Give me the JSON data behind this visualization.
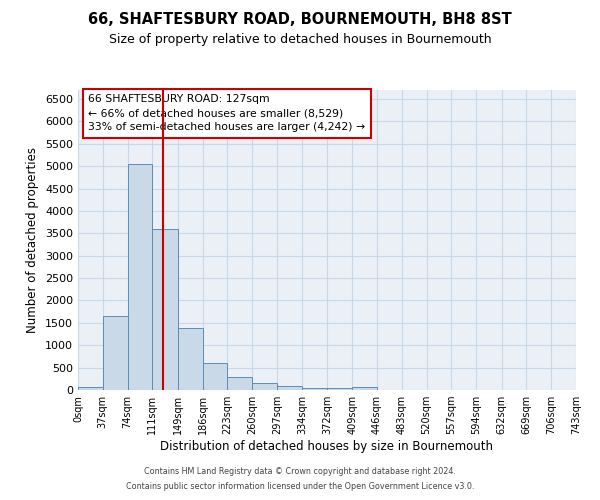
{
  "title": "66, SHAFTESBURY ROAD, BOURNEMOUTH, BH8 8ST",
  "subtitle": "Size of property relative to detached houses in Bournemouth",
  "xlabel": "Distribution of detached houses by size in Bournemouth",
  "ylabel": "Number of detached properties",
  "bar_color": "#c9d9e8",
  "bar_edge_color": "#5b8db8",
  "grid_color": "#c8d8e8",
  "background_color": "#eaf0f6",
  "vline_x": 127,
  "vline_color": "#cc0000",
  "annotation_text": "66 SHAFTESBURY ROAD: 127sqm\n← 66% of detached houses are smaller (8,529)\n33% of semi-detached houses are larger (4,242) →",
  "annotation_box_color": "#cc0000",
  "bin_edges": [
    0,
    37,
    74,
    111,
    149,
    186,
    223,
    260,
    297,
    334,
    372,
    409,
    446,
    483,
    520,
    557,
    594,
    632,
    669,
    706,
    743
  ],
  "bar_heights": [
    75,
    1650,
    5050,
    3600,
    1390,
    610,
    290,
    155,
    80,
    55,
    45,
    60,
    0,
    0,
    0,
    0,
    0,
    0,
    0,
    0
  ],
  "ylim": [
    0,
    6700
  ],
  "yticks": [
    0,
    500,
    1000,
    1500,
    2000,
    2500,
    3000,
    3500,
    4000,
    4500,
    5000,
    5500,
    6000,
    6500
  ],
  "footer_line1": "Contains HM Land Registry data © Crown copyright and database right 2024.",
  "footer_line2": "Contains public sector information licensed under the Open Government Licence v3.0."
}
